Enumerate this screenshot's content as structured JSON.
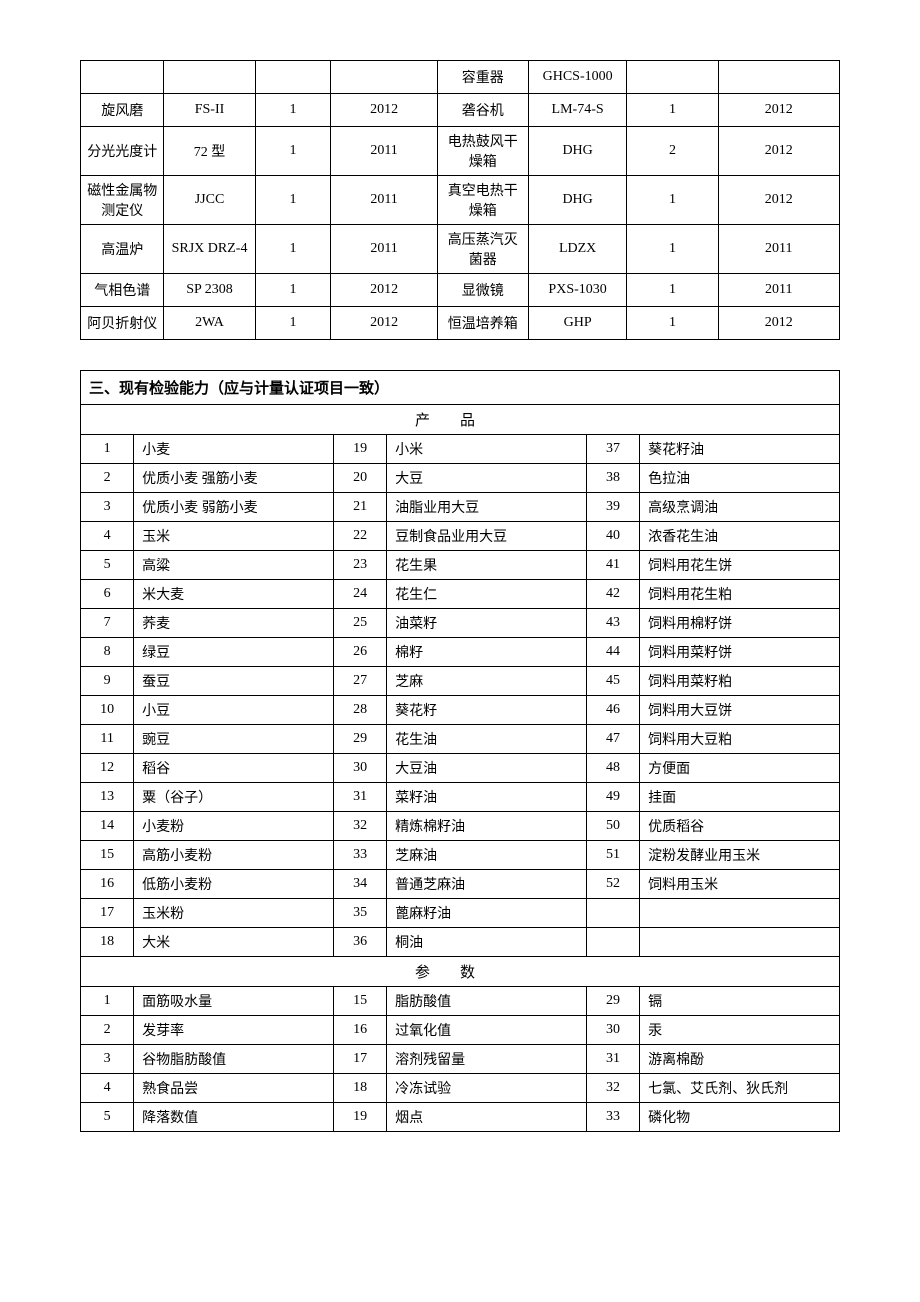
{
  "equipment": {
    "rows": [
      {
        "l_name": "",
        "l_model": "",
        "l_qty": "",
        "l_year": "",
        "r_name": "容重器",
        "r_model": "GHCS-1000",
        "r_qty": "",
        "r_year": ""
      },
      {
        "l_name": "旋风磨",
        "l_model": "FS-II",
        "l_qty": "1",
        "l_year": "2012",
        "r_name": "砻谷机",
        "r_model": "LM-74-S",
        "r_qty": "1",
        "r_year": "2012"
      },
      {
        "l_name": "分光光度计",
        "l_model": "72 型",
        "l_qty": "1",
        "l_year": "2011",
        "r_name": "电热鼓风干燥箱",
        "r_model": "DHG",
        "r_qty": "2",
        "r_year": "2012"
      },
      {
        "l_name": "磁性金属物测定仪",
        "l_model": "JJCC",
        "l_qty": "1",
        "l_year": "2011",
        "r_name": "真空电热干燥箱",
        "r_model": "DHG",
        "r_qty": "1",
        "r_year": "2012"
      },
      {
        "l_name": "高温炉",
        "l_model": "SRJX DRZ-4",
        "l_qty": "1",
        "l_year": "2011",
        "r_name": "高压蒸汽灭菌器",
        "r_model": "LDZX",
        "r_qty": "1",
        "r_year": "2011"
      },
      {
        "l_name": "气相色谱",
        "l_model": "SP 2308",
        "l_qty": "1",
        "l_year": "2012",
        "r_name": "显微镜",
        "r_model": "PXS-1030",
        "r_qty": "1",
        "r_year": "2011"
      },
      {
        "l_name": "阿贝折射仪",
        "l_model": "2WA",
        "l_qty": "1",
        "l_year": "2012",
        "r_name": "恒温培养箱",
        "r_model": "GHP",
        "r_qty": "1",
        "r_year": "2012"
      }
    ]
  },
  "capability": {
    "title": "三、现有检验能力（应与计量认证项目一致）",
    "products_header": "产品",
    "params_header": "参数",
    "products": [
      {
        "a_n": "1",
        "a": "小麦",
        "b_n": "19",
        "b": "小米",
        "c_n": "37",
        "c": "葵花籽油"
      },
      {
        "a_n": "2",
        "a": "优质小麦 强筋小麦",
        "b_n": "20",
        "b": "大豆",
        "c_n": "38",
        "c": "色拉油"
      },
      {
        "a_n": "3",
        "a": "优质小麦 弱筋小麦",
        "b_n": "21",
        "b": "油脂业用大豆",
        "c_n": "39",
        "c": "高级烹调油"
      },
      {
        "a_n": "4",
        "a": "玉米",
        "b_n": "22",
        "b": "豆制食品业用大豆",
        "c_n": "40",
        "c": "浓香花生油"
      },
      {
        "a_n": "5",
        "a": "高粱",
        "b_n": "23",
        "b": "花生果",
        "c_n": "41",
        "c": "饲料用花生饼"
      },
      {
        "a_n": "6",
        "a": "米大麦",
        "b_n": "24",
        "b": "花生仁",
        "c_n": "42",
        "c": "饲料用花生粕"
      },
      {
        "a_n": "7",
        "a": "荞麦",
        "b_n": "25",
        "b": "油菜籽",
        "c_n": "43",
        "c": "饲料用棉籽饼"
      },
      {
        "a_n": "8",
        "a": "绿豆",
        "b_n": "26",
        "b": "棉籽",
        "c_n": "44",
        "c": "饲料用菜籽饼"
      },
      {
        "a_n": "9",
        "a": "蚕豆",
        "b_n": "27",
        "b": "芝麻",
        "c_n": "45",
        "c": "饲料用菜籽粕"
      },
      {
        "a_n": "10",
        "a": "小豆",
        "b_n": "28",
        "b": "葵花籽",
        "c_n": "46",
        "c": "饲料用大豆饼"
      },
      {
        "a_n": "11",
        "a": "豌豆",
        "b_n": "29",
        "b": "花生油",
        "c_n": "47",
        "c": "饲料用大豆粕"
      },
      {
        "a_n": "12",
        "a": "稻谷",
        "b_n": "30",
        "b": "大豆油",
        "c_n": "48",
        "c": "方便面"
      },
      {
        "a_n": "13",
        "a": "粟（谷子）",
        "b_n": "31",
        "b": "菜籽油",
        "c_n": "49",
        "c": "挂面"
      },
      {
        "a_n": "14",
        "a": "小麦粉",
        "b_n": "32",
        "b": "精炼棉籽油",
        "c_n": "50",
        "c": "优质稻谷"
      },
      {
        "a_n": "15",
        "a": "高筋小麦粉",
        "b_n": "33",
        "b": "芝麻油",
        "c_n": "51",
        "c": "淀粉发酵业用玉米"
      },
      {
        "a_n": "16",
        "a": "低筋小麦粉",
        "b_n": "34",
        "b": "普通芝麻油",
        "c_n": "52",
        "c": "饲料用玉米"
      },
      {
        "a_n": "17",
        "a": "玉米粉",
        "b_n": "35",
        "b": "蓖麻籽油",
        "c_n": "",
        "c": ""
      },
      {
        "a_n": "18",
        "a": "大米",
        "b_n": "36",
        "b": "桐油",
        "c_n": "",
        "c": ""
      }
    ],
    "params": [
      {
        "a_n": "1",
        "a": "面筋吸水量",
        "b_n": "15",
        "b": "脂肪酸值",
        "c_n": "29",
        "c": "镉"
      },
      {
        "a_n": "2",
        "a": "发芽率",
        "b_n": "16",
        "b": "过氧化值",
        "c_n": "30",
        "c": "汞"
      },
      {
        "a_n": "3",
        "a": "谷物脂肪酸值",
        "b_n": "17",
        "b": "溶剂残留量",
        "c_n": "31",
        "c": "游离棉酚"
      },
      {
        "a_n": "4",
        "a": "熟食品尝",
        "b_n": "18",
        "b": "冷冻试验",
        "c_n": "32",
        "c": "七氯、艾氏剂、狄氏剂"
      },
      {
        "a_n": "5",
        "a": "降落数值",
        "b_n": "19",
        "b": "烟点",
        "c_n": "33",
        "c": "磷化物"
      }
    ]
  }
}
